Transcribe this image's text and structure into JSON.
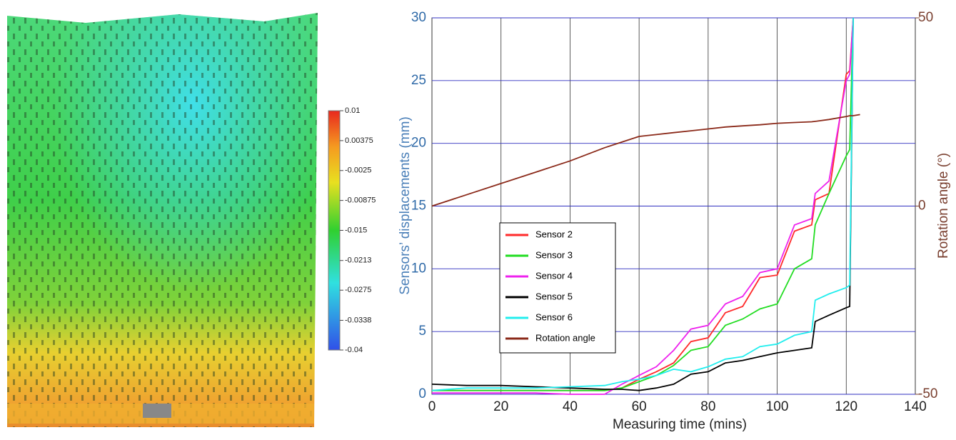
{
  "chart_data": [
    {
      "type": "heatmap",
      "colorbar_lim": [
        -0.04,
        0.01
      ],
      "colorbar_ticks": [
        0.01,
        0.00375,
        -0.0025,
        -0.00875,
        -0.015,
        -0.0213,
        -0.0275,
        -0.0338,
        -0.04
      ]
    },
    {
      "type": "line",
      "xlabel": "Measuring time (mins)",
      "ylabel": "Sensors’ displacements (mm)",
      "y2label": "Rotation angle (°)",
      "x": [
        0,
        10,
        20,
        30,
        40,
        50,
        55,
        60,
        65,
        70,
        75,
        80,
        85,
        90,
        95,
        100,
        105,
        110,
        111,
        115,
        120,
        121,
        122,
        124
      ],
      "xlim": [
        0,
        140
      ],
      "xticks": [
        0,
        20,
        40,
        60,
        80,
        100,
        120,
        140
      ],
      "ylim": [
        0,
        30
      ],
      "yticks": [
        0,
        5,
        10,
        15,
        20,
        25,
        30
      ],
      "y2lim": [
        -50,
        50
      ],
      "y2ticks": [
        -50,
        0,
        50
      ],
      "grid": true,
      "legend": "center-left",
      "series": [
        {
          "name": "Sensor 2",
          "color": "#ff2a2a",
          "values": [
            0.3,
            0.3,
            0.3,
            0.3,
            0.3,
            0.3,
            0.5,
            1.2,
            1.8,
            2.5,
            4.2,
            4.5,
            6.5,
            7.0,
            9.3,
            9.5,
            13,
            13.5,
            15.5,
            16,
            25.5,
            25.8,
            30,
            null
          ]
        },
        {
          "name": "Sensor 3",
          "color": "#22dd22",
          "values": [
            0.3,
            0.3,
            0.3,
            0.3,
            0.3,
            0.3,
            0.5,
            1.0,
            1.5,
            2.3,
            3.5,
            3.8,
            5.5,
            6.0,
            6.8,
            7.2,
            10,
            10.8,
            13.5,
            16,
            19,
            19.5,
            30,
            null
          ]
        },
        {
          "name": "Sensor 4",
          "color": "#ee22ee",
          "values": [
            0.1,
            0.1,
            0.1,
            0.1,
            0,
            0,
            0.8,
            1.5,
            2.2,
            3.5,
            5.2,
            5.5,
            7.2,
            7.8,
            9.7,
            10,
            13.5,
            14,
            16,
            17,
            25,
            25.5,
            30,
            null
          ]
        },
        {
          "name": "Sensor 5",
          "color": "#000000",
          "values": [
            0.8,
            0.7,
            0.7,
            0.6,
            0.5,
            0.4,
            0.4,
            0.3,
            0.5,
            0.8,
            1.6,
            1.8,
            2.5,
            2.7,
            3.0,
            3.3,
            3.5,
            3.7,
            5.8,
            6.3,
            6.9,
            7.0,
            30,
            null
          ]
        },
        {
          "name": "Sensor 6",
          "color": "#22eeee",
          "values": [
            0.3,
            0.5,
            0.5,
            0.5,
            0.6,
            0.7,
            1.0,
            1.2,
            1.5,
            2.0,
            1.8,
            2.2,
            2.8,
            3.0,
            3.8,
            4.0,
            4.7,
            5.0,
            7.5,
            8.0,
            8.5,
            8.7,
            30,
            null
          ]
        },
        {
          "name": "Rotation angle",
          "color": "#8b2a1a",
          "axis": "y2",
          "values": [
            0,
            3,
            6,
            9,
            12,
            15.5,
            17,
            18.5,
            19,
            19.5,
            20,
            20.5,
            21,
            21.3,
            21.6,
            22,
            22.2,
            22.4,
            22.5,
            23,
            23.8,
            24,
            24,
            24.3
          ]
        }
      ]
    }
  ]
}
